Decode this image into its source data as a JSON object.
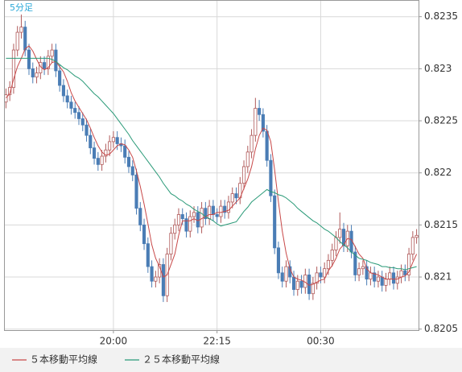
{
  "chart_data": {
    "type": "candlestick",
    "title": "5分足",
    "categories": [
      null,
      null,
      null,
      null,
      null,
      null,
      null,
      null,
      null,
      null,
      null,
      null,
      null,
      null,
      null,
      null,
      null,
      null,
      null,
      null,
      null,
      null,
      null,
      null,
      null,
      null,
      null,
      null,
      "20:00",
      null,
      null,
      null,
      null,
      null,
      null,
      null,
      null,
      null,
      null,
      null,
      null,
      null,
      null,
      null,
      null,
      null,
      null,
      null,
      null,
      null,
      null,
      null,
      null,
      null,
      null,
      "22:15",
      null,
      null,
      null,
      null,
      null,
      null,
      null,
      null,
      null,
      null,
      null,
      null,
      null,
      null,
      null,
      null,
      null,
      null,
      null,
      null,
      null,
      null,
      null,
      null,
      null,
      null,
      "00:30",
      null,
      null,
      null,
      null,
      null,
      null,
      null,
      null,
      null,
      null,
      null,
      null,
      null,
      null,
      null,
      null,
      null,
      null,
      null,
      null,
      null,
      null,
      null,
      null,
      null
    ],
    "open": [
      0.82268,
      0.82275,
      0.82282,
      0.82318,
      0.82335,
      0.8234,
      0.82318,
      0.823,
      0.82292,
      0.82296,
      0.82306,
      0.823,
      0.82312,
      0.82318,
      0.82298,
      0.82284,
      0.82274,
      0.82268,
      0.82262,
      0.82258,
      0.82252,
      0.82246,
      0.82236,
      0.82224,
      0.82214,
      0.82208,
      0.82216,
      0.82222,
      0.8223,
      0.82234,
      0.82228,
      0.82226,
      0.82215,
      0.82206,
      0.82198,
      0.82166,
      0.8215,
      0.82132,
      0.8211,
      0.82096,
      0.821,
      0.82112,
      0.82082,
      0.82122,
      0.82142,
      0.8215,
      0.8216,
      0.82156,
      0.82144,
      0.82158,
      0.82162,
      0.82148,
      0.82166,
      0.82156,
      0.82168,
      0.8216,
      0.82158,
      0.82168,
      0.82162,
      0.82172,
      0.8218,
      0.82176,
      0.8219,
      0.82206,
      0.8222,
      0.82236,
      0.82262,
      0.82256,
      0.8224,
      0.82212,
      0.82178,
      0.82128,
      0.82104,
      0.82096,
      0.8211,
      0.821,
      0.82088,
      0.82096,
      0.8209,
      0.82102,
      0.82084,
      0.82094,
      0.82104,
      0.821,
      0.82108,
      0.82116,
      0.82126,
      0.82138,
      0.82146,
      0.8213,
      0.82144,
      0.82124,
      0.82102,
      0.82108,
      0.8211,
      0.82098,
      0.82104,
      0.82096,
      0.821,
      0.82092,
      0.82098,
      0.82104,
      0.82094,
      0.821,
      0.82106,
      0.82102,
      0.82122,
      0.82138
    ],
    "high": [
      0.82281,
      0.82288,
      0.82324,
      0.82341,
      0.82352,
      0.82346,
      0.82324,
      0.82306,
      0.82302,
      0.82312,
      0.82312,
      0.82318,
      0.82324,
      0.82324,
      0.82304,
      0.8229,
      0.8228,
      0.82274,
      0.82268,
      0.82264,
      0.82258,
      0.82252,
      0.82242,
      0.8223,
      0.8222,
      0.82222,
      0.82228,
      0.82236,
      0.8224,
      0.8224,
      0.82234,
      0.82232,
      0.82221,
      0.82212,
      0.82204,
      0.82172,
      0.82156,
      0.82138,
      0.82116,
      0.82106,
      0.82118,
      0.82118,
      0.82128,
      0.82148,
      0.82156,
      0.82166,
      0.82166,
      0.82162,
      0.82164,
      0.82168,
      0.82168,
      0.82172,
      0.82172,
      0.82174,
      0.82174,
      0.82166,
      0.82174,
      0.82174,
      0.82178,
      0.82186,
      0.82186,
      0.82196,
      0.82212,
      0.82226,
      0.82242,
      0.82272,
      0.8227,
      0.82262,
      0.82246,
      0.82218,
      0.82184,
      0.82134,
      0.8211,
      0.82116,
      0.82116,
      0.82106,
      0.82102,
      0.82102,
      0.82108,
      0.82108,
      0.821,
      0.8211,
      0.8211,
      0.82114,
      0.82122,
      0.82132,
      0.82144,
      0.82162,
      0.82152,
      0.8215,
      0.8215,
      0.8213,
      0.82114,
      0.82116,
      0.82116,
      0.8211,
      0.8211,
      0.82106,
      0.82106,
      0.82104,
      0.8211,
      0.8211,
      0.82106,
      0.82112,
      0.82112,
      0.82128,
      0.82144,
      0.82146
    ],
    "low": [
      0.82262,
      0.82269,
      0.82276,
      0.82312,
      0.82329,
      0.82312,
      0.82294,
      0.82286,
      0.82286,
      0.8229,
      0.82294,
      0.82294,
      0.82306,
      0.82292,
      0.82278,
      0.82268,
      0.82262,
      0.82256,
      0.82252,
      0.82246,
      0.8224,
      0.8223,
      0.82218,
      0.82208,
      0.82202,
      0.82202,
      0.8221,
      0.82216,
      0.82224,
      0.82222,
      0.8222,
      0.82209,
      0.822,
      0.82192,
      0.8216,
      0.82144,
      0.82126,
      0.82104,
      0.8209,
      0.8209,
      0.82094,
      0.82076,
      0.82076,
      0.82116,
      0.82136,
      0.82144,
      0.8215,
      0.82138,
      0.82138,
      0.82152,
      0.82142,
      0.82142,
      0.8215,
      0.8215,
      0.82154,
      0.82152,
      0.82152,
      0.82156,
      0.82156,
      0.82166,
      0.8217,
      0.8217,
      0.82184,
      0.822,
      0.82214,
      0.8223,
      0.8225,
      0.82234,
      0.82206,
      0.82172,
      0.82122,
      0.82098,
      0.8209,
      0.8209,
      0.82094,
      0.82082,
      0.82082,
      0.82084,
      0.82084,
      0.82078,
      0.82078,
      0.82088,
      0.82094,
      0.82094,
      0.82102,
      0.8211,
      0.8212,
      0.82132,
      0.82124,
      0.82124,
      0.82118,
      0.82096,
      0.82096,
      0.82102,
      0.82092,
      0.82092,
      0.8209,
      0.8209,
      0.82086,
      0.82086,
      0.82092,
      0.82088,
      0.82088,
      0.82094,
      0.82096,
      0.82096,
      0.82116,
      0.82132
    ],
    "close": [
      0.82275,
      0.82282,
      0.82318,
      0.82335,
      0.8234,
      0.82318,
      0.823,
      0.82292,
      0.82296,
      0.82306,
      0.823,
      0.82312,
      0.82318,
      0.82298,
      0.82284,
      0.82274,
      0.82268,
      0.82262,
      0.82258,
      0.82252,
      0.82246,
      0.82236,
      0.82224,
      0.82214,
      0.82208,
      0.82216,
      0.82222,
      0.8223,
      0.82234,
      0.82228,
      0.82226,
      0.82215,
      0.82206,
      0.82198,
      0.82166,
      0.8215,
      0.82132,
      0.8211,
      0.82096,
      0.821,
      0.82112,
      0.82082,
      0.82122,
      0.82142,
      0.8215,
      0.8216,
      0.82156,
      0.82144,
      0.82158,
      0.82162,
      0.82148,
      0.82166,
      0.82156,
      0.82168,
      0.8216,
      0.82158,
      0.82168,
      0.82162,
      0.82172,
      0.8218,
      0.82176,
      0.8219,
      0.82206,
      0.8222,
      0.82236,
      0.82262,
      0.82256,
      0.8224,
      0.82212,
      0.82178,
      0.82128,
      0.82104,
      0.82096,
      0.8211,
      0.821,
      0.82088,
      0.82096,
      0.8209,
      0.82102,
      0.82084,
      0.82094,
      0.82104,
      0.821,
      0.82108,
      0.82116,
      0.82126,
      0.82138,
      0.82146,
      0.8213,
      0.82144,
      0.82124,
      0.82102,
      0.82108,
      0.8211,
      0.82098,
      0.82104,
      0.82096,
      0.821,
      0.82092,
      0.82098,
      0.82104,
      0.82094,
      0.821,
      0.82106,
      0.82102,
      0.82122,
      0.82138,
      0.8214
    ],
    "up_color": "#b05a5a",
    "down_color": "#4a7db5",
    "series": [
      {
        "name": "５本移動平均線",
        "color": "#c84848",
        "values": [
          0.82272,
          0.82276,
          0.8229,
          0.82302,
          0.8231,
          0.82319,
          0.82322,
          0.82317,
          0.82309,
          0.82302,
          0.82299,
          0.82301,
          0.82306,
          0.82307,
          0.82302,
          0.82297,
          0.82288,
          0.82277,
          0.82269,
          0.82263,
          0.82257,
          0.82251,
          0.82243,
          0.82234,
          0.82226,
          0.8222,
          0.82217,
          0.82218,
          0.82222,
          0.82226,
          0.82228,
          0.82227,
          0.82222,
          0.82215,
          0.82202,
          0.82187,
          0.8217,
          0.82151,
          0.82131,
          0.82118,
          0.8211,
          0.821,
          0.82102,
          0.82112,
          0.82122,
          0.8214,
          0.82154,
          0.82154,
          0.82154,
          0.82156,
          0.82154,
          0.82156,
          0.82158,
          0.8216,
          0.8216,
          0.82162,
          0.82162,
          0.82163,
          0.82164,
          0.82168,
          0.82172,
          0.82176,
          0.82185,
          0.82194,
          0.82206,
          0.82223,
          0.82236,
          0.82243,
          0.82241,
          0.8223,
          0.82203,
          0.82172,
          0.82144,
          0.82123,
          0.82108,
          0.821,
          0.82098,
          0.82097,
          0.82095,
          0.82092,
          0.82093,
          0.82095,
          0.82097,
          0.82098,
          0.82106,
          0.82111,
          0.82118,
          0.82127,
          0.82131,
          0.82137,
          0.82136,
          0.82129,
          0.82122,
          0.82118,
          0.82108,
          0.82104,
          0.82103,
          0.82102,
          0.821,
          0.82098,
          0.82098,
          0.82098,
          0.82098,
          0.821,
          0.82101,
          0.82105,
          0.82114,
          0.82122
        ]
      },
      {
        "name": "２５本移動平均線",
        "color": "#2a9a78",
        "values": [
          0.8231,
          0.8231,
          0.8231,
          0.8231,
          0.8231,
          0.8231,
          0.8231,
          0.8231,
          0.8231,
          0.8231,
          0.8231,
          0.8231,
          0.82309,
          0.82307,
          0.82304,
          0.82301,
          0.82299,
          0.82296,
          0.82293,
          0.82291,
          0.82288,
          0.82284,
          0.8228,
          0.82276,
          0.82273,
          0.82269,
          0.82265,
          0.82261,
          0.82257,
          0.82252,
          0.82247,
          0.82242,
          0.82237,
          0.82231,
          0.82226,
          0.82221,
          0.82216,
          0.82211,
          0.82206,
          0.82201,
          0.82196,
          0.8219,
          0.82185,
          0.8218,
          0.82178,
          0.82175,
          0.82173,
          0.8217,
          0.82168,
          0.82165,
          0.82163,
          0.82161,
          0.82158,
          0.82156,
          0.82154,
          0.82151,
          0.82149,
          0.8215,
          0.82151,
          0.82152,
          0.82153,
          0.82158,
          0.82163,
          0.82167,
          0.82172,
          0.82175,
          0.82178,
          0.82181,
          0.82184,
          0.82182,
          0.82181,
          0.82179,
          0.82178,
          0.82176,
          0.82173,
          0.8217,
          0.82166,
          0.82163,
          0.8216,
          0.82157,
          0.82154,
          0.82152,
          0.82149,
          0.82146,
          0.82144,
          0.82141,
          0.82138,
          0.82134,
          0.82131,
          0.82128,
          0.82124,
          0.82121,
          0.82118,
          0.82117,
          0.82116,
          0.82114,
          0.82113,
          0.82112,
          0.8211,
          0.8211,
          0.82109,
          0.82109,
          0.82108,
          0.82108,
          0.82107,
          0.82108,
          0.82109,
          0.8211
        ]
      }
    ],
    "ylim": [
      0.82049,
      0.82366
    ],
    "yticks": [
      0.8205,
      0.821,
      0.8215,
      0.822,
      0.8225,
      0.823,
      0.8235
    ],
    "grid": true
  }
}
